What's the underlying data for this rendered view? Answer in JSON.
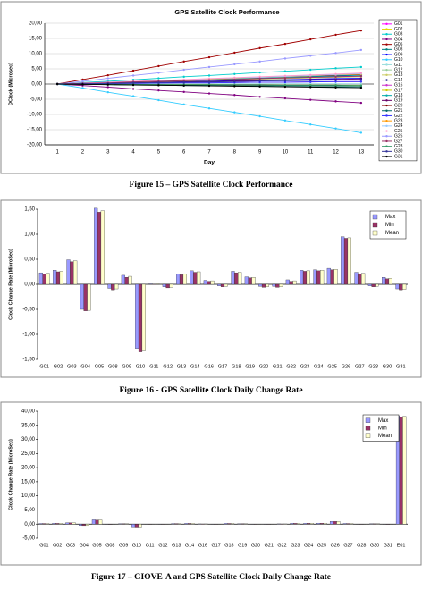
{
  "chart_data": [
    {
      "type": "line",
      "title": "GPS Satellite Clock Performance",
      "caption": "Figure 15 – GPS Satellite Clock Performance",
      "x_label": "Day",
      "y_label": "DClock (Microsec)",
      "legend": "right",
      "grid": true,
      "categories": [
        "1",
        "2",
        "3",
        "4",
        "5",
        "6",
        "7",
        "8",
        "9",
        "10",
        "11",
        "12",
        "13"
      ],
      "ylim": [
        -20,
        20
      ],
      "yticks": [
        {
          "value": -20,
          "label": "-20,00"
        },
        {
          "value": -15,
          "label": "-15,00"
        },
        {
          "value": -10,
          "label": "-10,00"
        },
        {
          "value": -5,
          "label": "-5,00"
        },
        {
          "value": 0,
          "label": "0,00"
        },
        {
          "value": 5,
          "label": "5,00"
        },
        {
          "value": 10,
          "label": "10,00"
        },
        {
          "value": 15,
          "label": "15,00"
        },
        {
          "value": 20,
          "label": "20,00"
        }
      ],
      "series": [
        {
          "name": "G01",
          "color": "#ff00ff",
          "values": [
            0,
            0.2,
            0.4,
            0.7,
            0.9,
            1.1,
            1.3,
            1.5,
            1.8,
            2.0,
            2.2,
            2.4,
            2.6
          ]
        },
        {
          "name": "G02",
          "color": "#e6d800",
          "values": [
            0,
            0.3,
            0.5,
            0.8,
            1.0,
            1.3,
            1.6,
            1.8,
            2.1,
            2.3,
            2.6,
            2.9,
            3.1
          ]
        },
        {
          "name": "G03",
          "color": "#00cccc",
          "values": [
            0,
            0.5,
            0.9,
            1.4,
            1.9,
            2.4,
            2.8,
            3.3,
            3.8,
            4.2,
            4.7,
            5.2,
            5.6
          ]
        },
        {
          "name": "G04",
          "color": "#800080",
          "values": [
            0,
            -0.5,
            -1.0,
            -1.6,
            -2.1,
            -2.6,
            -3.1,
            -3.6,
            -4.2,
            -4.7,
            -5.2,
            -5.7,
            -6.2
          ]
        },
        {
          "name": "G05",
          "color": "#a00000",
          "values": [
            0,
            1.5,
            2.9,
            4.4,
            5.9,
            7.4,
            8.8,
            10.3,
            11.8,
            13.2,
            14.7,
            16.2,
            17.6
          ]
        },
        {
          "name": "G08",
          "color": "#008080",
          "values": [
            0,
            -0.1,
            -0.2,
            -0.3,
            -0.4,
            -0.5,
            -0.5,
            -0.6,
            -0.7,
            -0.8,
            -0.9,
            -1.0,
            -1.1
          ]
        },
        {
          "name": "G09",
          "color": "#0000ff",
          "values": [
            0,
            0.2,
            0.3,
            0.5,
            0.6,
            0.8,
            1.0,
            1.1,
            1.3,
            1.4,
            1.6,
            1.8,
            1.9
          ]
        },
        {
          "name": "G10",
          "color": "#33ccff",
          "values": [
            0,
            -1.3,
            -2.7,
            -4.0,
            -5.3,
            -6.7,
            -8.0,
            -9.3,
            -10.6,
            -12.0,
            -13.3,
            -14.6,
            -16.0
          ]
        },
        {
          "name": "G11",
          "color": "#99dddd",
          "values": [
            0,
            0,
            0,
            0,
            0,
            0.1,
            0.1,
            0.1,
            0.1,
            0.1,
            0.1,
            0.1,
            0.1
          ]
        },
        {
          "name": "G12",
          "color": "#99cc99",
          "values": [
            0,
            -0.1,
            -0.1,
            -0.2,
            -0.2,
            -0.3,
            -0.4,
            -0.4,
            -0.5,
            -0.5,
            -0.6,
            -0.7,
            -0.7
          ]
        },
        {
          "name": "G13",
          "color": "#cccc66",
          "values": [
            0,
            0.2,
            0.4,
            0.6,
            0.8,
            1.0,
            1.2,
            1.4,
            1.6,
            1.8,
            2.0,
            2.2,
            2.4
          ]
        },
        {
          "name": "G14",
          "color": "#000080",
          "values": [
            0,
            0.3,
            0.5,
            0.8,
            1.0,
            1.3,
            1.5,
            1.8,
            2.0,
            2.3,
            2.5,
            2.8,
            3.0
          ]
        },
        {
          "name": "G16",
          "color": "#cc33cc",
          "values": [
            0,
            0.1,
            0.1,
            0.2,
            0.3,
            0.4,
            0.4,
            0.5,
            0.6,
            0.6,
            0.7,
            0.8,
            0.8
          ]
        },
        {
          "name": "G17",
          "color": "#cccc00",
          "values": [
            0,
            0,
            -0.1,
            -0.1,
            -0.2,
            -0.2,
            -0.2,
            -0.3,
            -0.3,
            -0.4,
            -0.4,
            -0.4,
            -0.5
          ]
        },
        {
          "name": "G18",
          "color": "#00aaaa",
          "values": [
            0,
            0.2,
            0.5,
            0.7,
            1.0,
            1.2,
            1.4,
            1.7,
            1.9,
            2.2,
            2.4,
            2.6,
            2.9
          ]
        },
        {
          "name": "G19",
          "color": "#660066",
          "values": [
            0,
            0.1,
            0.3,
            0.4,
            0.6,
            0.7,
            0.8,
            1.0,
            1.1,
            1.3,
            1.4,
            1.5,
            1.7
          ]
        },
        {
          "name": "G20",
          "color": "#800000",
          "values": [
            0,
            -0.1,
            -0.1,
            -0.2,
            -0.2,
            -0.3,
            -0.3,
            -0.4,
            -0.4,
            -0.5,
            -0.5,
            -0.6,
            -0.6
          ]
        },
        {
          "name": "G21",
          "color": "#006666",
          "values": [
            0,
            -0.1,
            -0.1,
            -0.2,
            -0.2,
            -0.3,
            -0.3,
            -0.4,
            -0.4,
            -0.5,
            -0.5,
            -0.6,
            -0.6
          ]
        },
        {
          "name": "G22",
          "color": "#3333ff",
          "values": [
            0,
            0.1,
            0.1,
            0.2,
            0.3,
            0.4,
            0.4,
            0.5,
            0.6,
            0.6,
            0.7,
            0.8,
            0.8
          ]
        },
        {
          "name": "G23",
          "color": "#ff9900",
          "values": [
            0,
            0.3,
            0.5,
            0.8,
            1.1,
            1.4,
            1.6,
            1.9,
            2.2,
            2.4,
            2.7,
            3.0,
            3.2
          ]
        },
        {
          "name": "G24",
          "color": "#99ccff",
          "values": [
            0,
            0.3,
            0.6,
            0.8,
            1.1,
            1.4,
            1.7,
            2.0,
            2.2,
            2.5,
            2.8,
            3.1,
            3.4
          ]
        },
        {
          "name": "G25",
          "color": "#ff99cc",
          "values": [
            0,
            0.3,
            0.6,
            0.9,
            1.2,
            1.5,
            1.8,
            2.1,
            2.4,
            2.7,
            3.0,
            3.3,
            3.6
          ]
        },
        {
          "name": "G26",
          "color": "#9999ff",
          "values": [
            0,
            0.9,
            1.9,
            2.8,
            3.7,
            4.7,
            5.6,
            6.5,
            7.4,
            8.4,
            9.3,
            10.2,
            11.2
          ]
        },
        {
          "name": "G27",
          "color": "#993366",
          "values": [
            0,
            0.2,
            0.4,
            0.7,
            0.9,
            1.1,
            1.3,
            1.5,
            1.8,
            2.0,
            2.2,
            2.4,
            2.6
          ]
        },
        {
          "name": "G28",
          "color": "#339966",
          "values": [
            0,
            0,
            -0.1,
            -0.1,
            -0.2,
            -0.2,
            -0.2,
            -0.3,
            -0.3,
            -0.4,
            -0.4,
            -0.4,
            -0.5
          ]
        },
        {
          "name": "G30",
          "color": "#333399",
          "values": [
            0,
            0.1,
            0.2,
            0.4,
            0.5,
            0.6,
            0.7,
            0.8,
            1.0,
            1.1,
            1.2,
            1.3,
            1.4
          ]
        },
        {
          "name": "G31",
          "color": "#000000",
          "values": [
            0,
            -0.1,
            -0.2,
            -0.3,
            -0.4,
            -0.5,
            -0.6,
            -0.7,
            -0.8,
            -0.9,
            -1.0,
            -1.1,
            -1.2
          ]
        }
      ]
    },
    {
      "type": "bar",
      "caption": "Figure 16 - GPS Satellite Clock Daily Change Rate",
      "y_label": "Clock Change Rate (MicroSec)",
      "legend": "top-right",
      "grid": false,
      "categories": [
        "G01",
        "G02",
        "G03",
        "G04",
        "G05",
        "G08",
        "G09",
        "G10",
        "G11",
        "G12",
        "G13",
        "G14",
        "G16",
        "G17",
        "G18",
        "G19",
        "G20",
        "G21",
        "G22",
        "G23",
        "G24",
        "G25",
        "G26",
        "G27",
        "G28",
        "G30",
        "G31"
      ],
      "ylim": [
        -1.5,
        1.5
      ],
      "yticks": [
        {
          "value": -1.5,
          "label": "-1,50"
        },
        {
          "value": -1,
          "label": "-1,00"
        },
        {
          "value": -0.5,
          "label": "-0,50"
        },
        {
          "value": 0,
          "label": "0,00"
        },
        {
          "value": 0.5,
          "label": "0,50"
        },
        {
          "value": 1,
          "label": "1,00"
        },
        {
          "value": 1.5,
          "label": "1,50"
        }
      ],
      "series": [
        {
          "name": "Max",
          "color": "#9999ff",
          "values": [
            0.23,
            0.28,
            0.49,
            -0.5,
            1.52,
            -0.08,
            0.18,
            -1.28,
            0.01,
            -0.05,
            0.21,
            0.27,
            0.08,
            -0.03,
            0.26,
            0.15,
            -0.04,
            -0.04,
            0.09,
            0.28,
            0.29,
            0.32,
            0.95,
            0.24,
            -0.03,
            0.14,
            -0.09
          ]
        },
        {
          "name": "Min",
          "color": "#993366",
          "values": [
            0.21,
            0.25,
            0.45,
            -0.53,
            1.44,
            -0.11,
            0.14,
            -1.35,
            0.0,
            -0.07,
            0.19,
            0.24,
            0.06,
            -0.05,
            0.23,
            0.13,
            -0.06,
            -0.06,
            0.06,
            0.26,
            0.27,
            0.29,
            0.92,
            0.21,
            -0.05,
            0.11,
            -0.11
          ]
        },
        {
          "name": "Mean",
          "color": "#ffffcc",
          "values": [
            0.22,
            0.26,
            0.47,
            -0.52,
            1.47,
            -0.09,
            0.16,
            -1.33,
            0.01,
            -0.06,
            0.2,
            0.25,
            0.07,
            -0.04,
            0.24,
            0.14,
            -0.05,
            -0.05,
            0.07,
            0.27,
            0.28,
            0.3,
            0.93,
            0.22,
            -0.04,
            0.12,
            -0.1
          ]
        }
      ]
    },
    {
      "type": "bar",
      "caption": "Figure 17 – GIOVE-A and GPS Satellite Clock Daily Change Rate",
      "y_label": "Clock Change Rate (MicroSec)",
      "legend": "top-right",
      "grid": false,
      "categories": [
        "G01",
        "G02",
        "G03",
        "G04",
        "G05",
        "G08",
        "G09",
        "G10",
        "G11",
        "G12",
        "G13",
        "G14",
        "G16",
        "G17",
        "G18",
        "G19",
        "G20",
        "G21",
        "G22",
        "G23",
        "G24",
        "G25",
        "G26",
        "G27",
        "G28",
        "G30",
        "G31",
        "E01"
      ],
      "ylim": [
        -5,
        40
      ],
      "yticks": [
        {
          "value": -5,
          "label": "-5,00"
        },
        {
          "value": 0,
          "label": "0,00"
        },
        {
          "value": 5,
          "label": "5,00"
        },
        {
          "value": 10,
          "label": "10,00"
        },
        {
          "value": 15,
          "label": "15,00"
        },
        {
          "value": 20,
          "label": "20,00"
        },
        {
          "value": 25,
          "label": "25,00"
        },
        {
          "value": 30,
          "label": "30,00"
        },
        {
          "value": 35,
          "label": "35,00"
        },
        {
          "value": 40,
          "label": "40,00"
        }
      ],
      "series": [
        {
          "name": "Max",
          "color": "#9999ff",
          "values": [
            0.23,
            0.28,
            0.49,
            -0.5,
            1.52,
            -0.08,
            0.18,
            -1.28,
            0.01,
            -0.05,
            0.21,
            0.27,
            0.08,
            -0.03,
            0.26,
            0.15,
            -0.04,
            -0.04,
            0.09,
            0.28,
            0.29,
            0.32,
            0.95,
            0.24,
            -0.03,
            0.14,
            -0.09,
            38.4
          ]
        },
        {
          "name": "Min",
          "color": "#993366",
          "values": [
            0.21,
            0.25,
            0.45,
            -0.53,
            1.44,
            -0.11,
            0.14,
            -1.35,
            0.0,
            -0.07,
            0.19,
            0.24,
            0.06,
            -0.05,
            0.23,
            0.13,
            -0.06,
            -0.06,
            0.06,
            0.26,
            0.27,
            0.29,
            0.92,
            0.21,
            -0.05,
            0.11,
            -0.11,
            38.0
          ]
        },
        {
          "name": "Mean",
          "color": "#ffffcc",
          "values": [
            0.22,
            0.26,
            0.47,
            -0.52,
            1.47,
            -0.09,
            0.16,
            -1.33,
            0.01,
            -0.06,
            0.2,
            0.25,
            0.07,
            -0.04,
            0.24,
            0.14,
            -0.05,
            -0.05,
            0.07,
            0.27,
            0.28,
            0.3,
            0.93,
            0.22,
            -0.04,
            0.12,
            -0.1,
            38.2
          ]
        }
      ]
    }
  ]
}
